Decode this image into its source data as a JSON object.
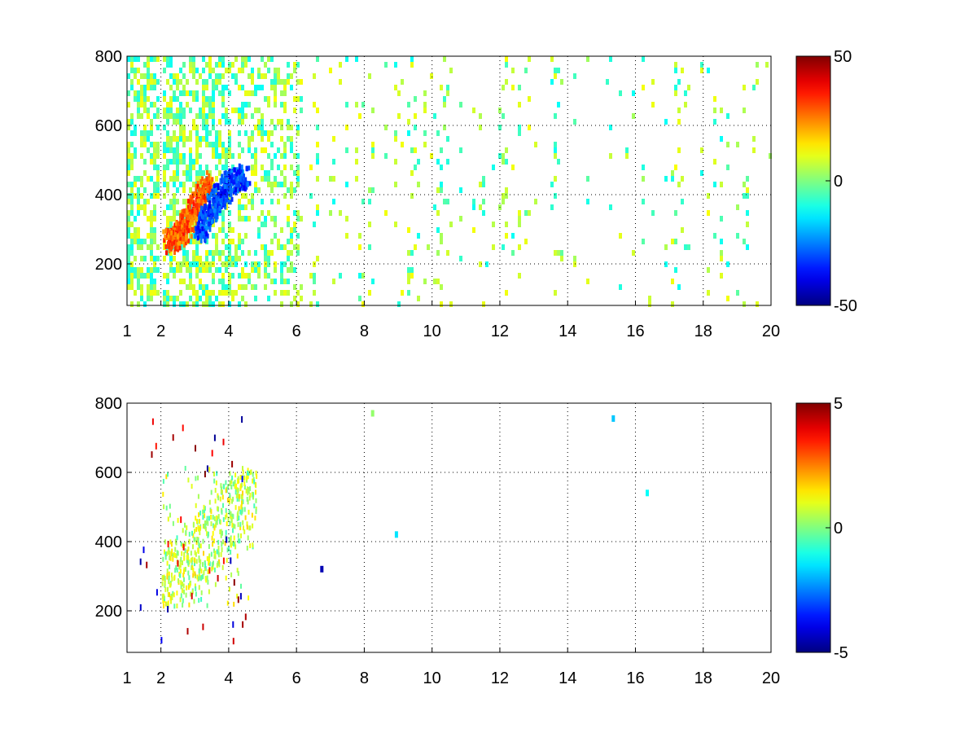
{
  "figure": {
    "background": "#ffffff",
    "colormap": "jet"
  },
  "chart_data": [
    {
      "type": "heatmap",
      "title": "",
      "xlabel": "",
      "ylabel": "",
      "xlim": [
        1,
        20
      ],
      "ylim": [
        80,
        800
      ],
      "xticks": [
        1,
        2,
        4,
        6,
        8,
        10,
        12,
        14,
        16,
        18,
        20
      ],
      "xtick_labels": [
        "1",
        "2",
        "4",
        "6",
        "8",
        "10",
        "12",
        "14",
        "16",
        "18",
        "20"
      ],
      "yticks": [
        200,
        400,
        600,
        800
      ],
      "ytick_labels": [
        "200",
        "400",
        "600",
        "800"
      ],
      "grid": true,
      "grid_x": [
        2,
        4,
        6,
        8,
        10,
        12,
        14,
        16,
        18,
        20
      ],
      "colorbar": {
        "min": -50,
        "max": 50,
        "ticks": [
          -50,
          0,
          50
        ],
        "tick_labels": [
          "-50",
          "0",
          "50"
        ]
      },
      "features": [
        {
          "kind": "ridge",
          "desc": "strong positive band",
          "x": [
            2.2,
            2.5,
            2.8,
            3.1,
            3.4
          ],
          "y": [
            270,
            290,
            330,
            390,
            440
          ],
          "value": 35
        },
        {
          "kind": "ridge",
          "desc": "strong negative band",
          "x": [
            3.1,
            3.4,
            3.7,
            4.0,
            4.5
          ],
          "y": [
            300,
            350,
            400,
            440,
            460
          ],
          "value": -38
        }
      ],
      "noise": {
        "x_range": [
          1,
          20
        ],
        "dominant_value_range": [
          -12,
          10
        ]
      }
    },
    {
      "type": "heatmap",
      "title": "",
      "xlabel": "",
      "ylabel": "",
      "xlim": [
        1,
        20
      ],
      "ylim": [
        80,
        800
      ],
      "xticks": [
        1,
        2,
        4,
        6,
        8,
        10,
        12,
        14,
        16,
        18,
        20
      ],
      "xtick_labels": [
        "1",
        "2",
        "4",
        "6",
        "8",
        "10",
        "12",
        "14",
        "16",
        "18",
        "20"
      ],
      "yticks": [
        200,
        400,
        600,
        800
      ],
      "ytick_labels": [
        "200",
        "400",
        "600",
        "800"
      ],
      "grid": true,
      "grid_x": [
        2,
        4,
        6,
        8,
        10,
        12,
        14,
        16,
        18,
        20
      ],
      "colorbar": {
        "min": -5,
        "max": 5,
        "ticks": [
          -5,
          0,
          5
        ],
        "tick_labels": [
          "-5",
          "0",
          "5"
        ]
      },
      "features": [
        {
          "kind": "cluster",
          "desc": "sparse near-zero cluster",
          "x_range": [
            2.0,
            4.8
          ],
          "y_range": [
            220,
            620
          ],
          "value": 0.5
        }
      ],
      "isolated_points": [
        {
          "x": 8.9,
          "y": 430,
          "value": -1.5
        },
        {
          "x": 6.7,
          "y": 330,
          "value": -4.5
        },
        {
          "x": 15.3,
          "y": 765,
          "value": -1.8
        },
        {
          "x": 16.3,
          "y": 550,
          "value": -1.2
        },
        {
          "x": 8.2,
          "y": 780,
          "value": 0.2
        }
      ]
    }
  ]
}
